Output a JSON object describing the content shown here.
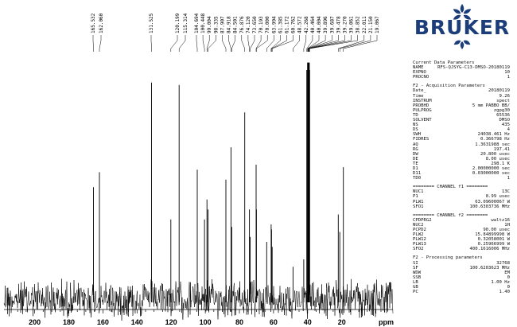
{
  "logo": {
    "text": "BRUKER",
    "color": "#1b3d7a"
  },
  "chart_data": {
    "type": "line",
    "xlabel": "ppm",
    "xlim": [
      218,
      -10
    ],
    "x_reversed": true,
    "x_ticks": [
      200,
      180,
      160,
      140,
      120,
      100,
      80,
      60,
      40,
      20
    ],
    "noise_band": [
      -0.1,
      0.1
    ],
    "peaks": [
      {
        "ppm": 165.532,
        "label": "165.532",
        "height": 0.45
      },
      {
        "ppm": 162.06,
        "label": "162.060",
        "height": 0.51
      },
      {
        "ppm": 131.525,
        "label": "131.525",
        "height": 0.87
      },
      {
        "ppm": 120.199,
        "label": "120.199",
        "height": 0.32
      },
      {
        "ppm": 115.314,
        "label": "115.314",
        "height": 0.86
      },
      {
        "ppm": 104.694,
        "label": "104.694",
        "height": 0.52
      },
      {
        "ppm": 100.448,
        "label": "100.448",
        "height": 0.32
      },
      {
        "ppm": 99.004,
        "label": "99.004",
        "height": 0.4
      },
      {
        "ppm": 98.335,
        "label": "98.335",
        "height": 0.36
      },
      {
        "ppm": 87.907,
        "label": "87.907",
        "height": 0.48
      },
      {
        "ppm": 84.918,
        "label": "84.918",
        "height": 0.61
      },
      {
        "ppm": 84.501,
        "label": "84.501",
        "height": 0.29
      },
      {
        "ppm": 76.876,
        "label": "76.876",
        "height": 0.75
      },
      {
        "ppm": 74.12,
        "label": "74.120",
        "height": 0.36
      },
      {
        "ppm": 73.65,
        "label": "73.650",
        "height": 0.25
      },
      {
        "ppm": 70.193,
        "label": "70.193",
        "height": 0.54
      },
      {
        "ppm": 70.0,
        "label": "70.000",
        "height": 0.36
      },
      {
        "ppm": 63.994,
        "label": "63.994",
        "height": 0.23
      },
      {
        "ppm": 61.385,
        "label": "61.385",
        "height": 0.3
      },
      {
        "ppm": 61.172,
        "label": "61.172",
        "height": 0.28
      },
      {
        "ppm": 60.762,
        "label": "60.762",
        "height": 0.21
      },
      {
        "ppm": 48.572,
        "label": "48.572",
        "height": 0.13
      },
      {
        "ppm": 42.268,
        "label": "42.268",
        "height": 0.16
      },
      {
        "ppm": 40.464,
        "label": "40.464",
        "height": 0.92
      },
      {
        "ppm": 40.004,
        "label": "40.004",
        "height": 0.95
      },
      {
        "ppm": 39.896,
        "label": "39.896",
        "height": 0.95
      },
      {
        "ppm": 39.687,
        "label": "39.687",
        "height": 0.95
      },
      {
        "ppm": 39.478,
        "label": "39.478",
        "height": 0.95
      },
      {
        "ppm": 39.27,
        "label": "39.270",
        "height": 0.95
      },
      {
        "ppm": 39.061,
        "label": "39.061",
        "height": 0.95
      },
      {
        "ppm": 38.852,
        "label": "38.852",
        "height": 0.92
      },
      {
        "ppm": 22.011,
        "label": "22.011",
        "height": 0.34
      },
      {
        "ppm": 21.15,
        "label": "21.150",
        "height": 0.27
      },
      {
        "ppm": 19.067,
        "label": "19.067",
        "height": 0.53
      }
    ]
  },
  "params": {
    "section1": {
      "title": "Current Data Parameters",
      "rows": [
        {
          "k": "NAME",
          "v": "RFS-QJSYG-C13-DMSO-20180119"
        },
        {
          "k": "EXPNO",
          "v": "10"
        },
        {
          "k": "PROCNO",
          "v": "1"
        }
      ]
    },
    "section2": {
      "title": "F2 - Acquisition Parameters",
      "rows": [
        {
          "k": "Date_",
          "v": "20180119"
        },
        {
          "k": "Time",
          "v": "9.26"
        },
        {
          "k": "INSTRUM",
          "v": "spect"
        },
        {
          "k": "PROBHD",
          "v": "5 mm PABBO BB/"
        },
        {
          "k": "PULPROG",
          "v": "zgpg30"
        },
        {
          "k": "TD",
          "v": "65536"
        },
        {
          "k": "SOLVENT",
          "v": "DMSO"
        },
        {
          "k": "NS",
          "v": "435"
        },
        {
          "k": "DS",
          "v": "4"
        },
        {
          "k": "SWH",
          "v": "24038.461 Hz"
        },
        {
          "k": "FIDRES",
          "v": "0.366798 Hz"
        },
        {
          "k": "AQ",
          "v": "1.3631988 sec"
        },
        {
          "k": "RG",
          "v": "197.41"
        },
        {
          "k": "DW",
          "v": "20.800 usec"
        },
        {
          "k": "DE",
          "v": "8.00 usec"
        },
        {
          "k": "TE",
          "v": "298.1 K"
        },
        {
          "k": "D1",
          "v": "2.00000000 sec"
        },
        {
          "k": "D11",
          "v": "0.03000000 sec"
        },
        {
          "k": "TD0",
          "v": "1"
        }
      ]
    },
    "section3": {
      "title": "======== CHANNEL f1 ========",
      "rows": [
        {
          "k": "NUC1",
          "v": "13C"
        },
        {
          "k": "P1",
          "v": "8.99 usec"
        },
        {
          "k": "PLW1",
          "v": "63.09600067 W"
        },
        {
          "k": "SFO1",
          "v": "100.6303736 MHz"
        }
      ]
    },
    "section4": {
      "title": "======== CHANNEL f2 ========",
      "rows": [
        {
          "k": "CPDPRG2",
          "v": "waltz16"
        },
        {
          "k": "NUC2",
          "v": "1H"
        },
        {
          "k": "PCPD2",
          "v": "90.00 usec"
        },
        {
          "k": "PLW2",
          "v": "15.84899998 W"
        },
        {
          "k": "PLW12",
          "v": "0.32058001 W"
        },
        {
          "k": "PLW13",
          "v": "0.25966999 W"
        },
        {
          "k": "SFO2",
          "v": "400.1616006 MHz"
        }
      ]
    },
    "section5": {
      "title": "F2 - Processing parameters",
      "rows": [
        {
          "k": "SI",
          "v": "32768"
        },
        {
          "k": "SF",
          "v": "100.6203623 MHz"
        },
        {
          "k": "WDW",
          "v": "EM"
        },
        {
          "k": "SSB",
          "v": "0"
        },
        {
          "k": "LB",
          "v": "1.00 Hz"
        },
        {
          "k": "GB",
          "v": "0"
        },
        {
          "k": "PC",
          "v": "1.40"
        }
      ]
    }
  }
}
